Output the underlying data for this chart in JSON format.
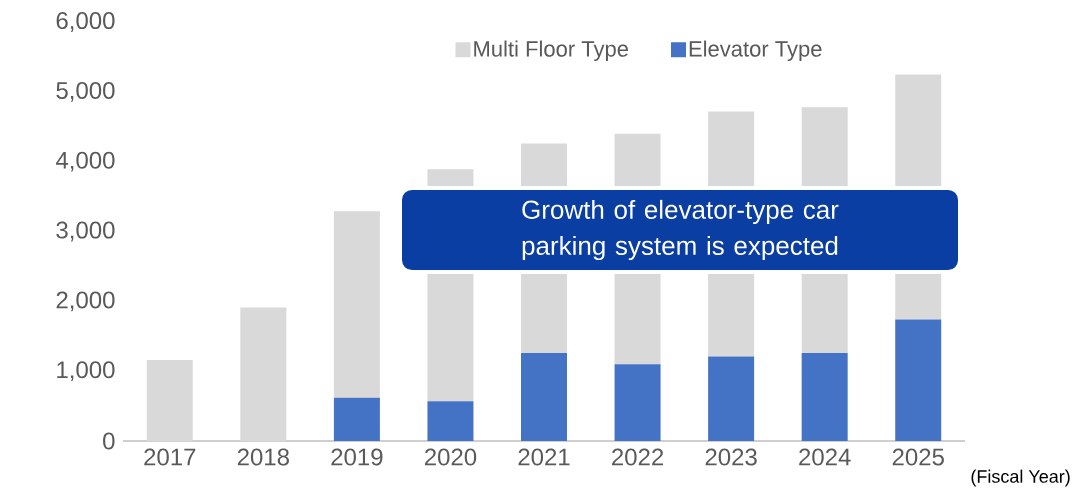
{
  "chart_data": {
    "type": "bar",
    "stacked": true,
    "categories": [
      "2017",
      "2018",
      "2019",
      "2020",
      "2021",
      "2022",
      "2023",
      "2024",
      "2025"
    ],
    "xlabel": "(Fiscal Year)",
    "series": [
      {
        "name": "Elevator Type",
        "color": "#4472c4",
        "values": [
          0,
          0,
          620,
          570,
          1260,
          1100,
          1210,
          1260,
          1740
        ]
      },
      {
        "name": "Multi Floor Type",
        "color": "#d9d9d9",
        "values": [
          1160,
          1910,
          2670,
          3320,
          3000,
          3300,
          3510,
          3520,
          3510
        ]
      }
    ],
    "ylim": [
      0,
      6000
    ],
    "yticks": [
      0,
      {
        "value": 1000,
        "label": "1,000"
      },
      {
        "value": 2000,
        "label": "2,000"
      },
      {
        "value": 3000,
        "label": "3,000"
      },
      {
        "value": 4000,
        "label": "4,000"
      },
      {
        "value": 5000,
        "label": "5,000"
      },
      {
        "value": 6000,
        "label": "6,000"
      }
    ],
    "legend": "top",
    "annotations": [
      "Growth of elevator-type car parking system is expected"
    ]
  }
}
